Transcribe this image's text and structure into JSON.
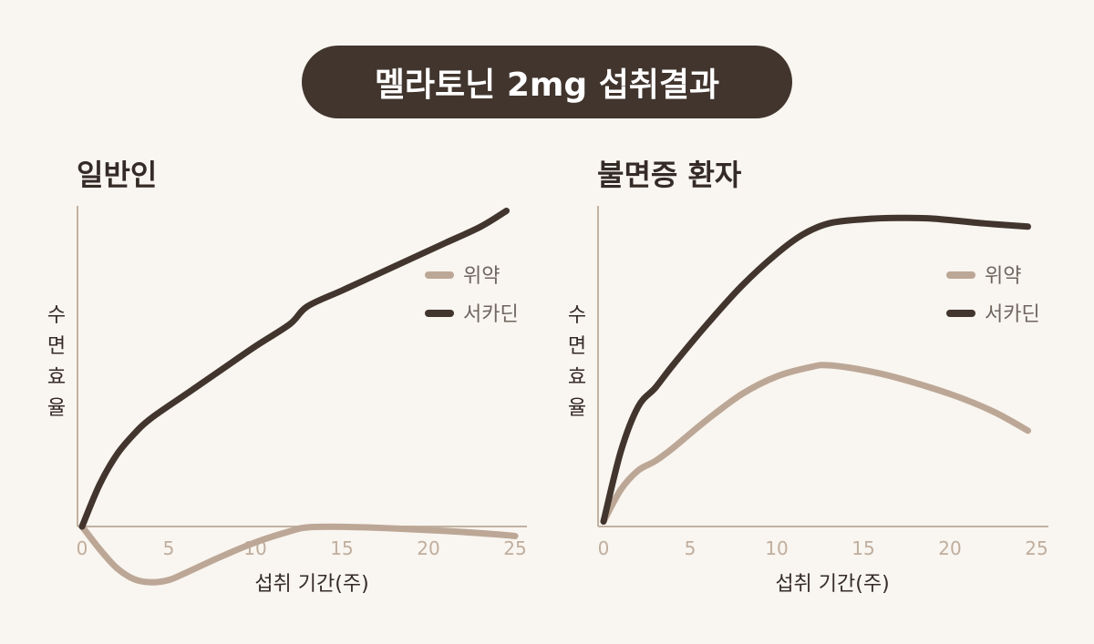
{
  "title": "멜라토닌 2mg 섭취결과",
  "colors": {
    "placebo": "#bca796",
    "circadin": "#41352e",
    "axis": "#c2b2a2"
  },
  "chart_data": [
    {
      "type": "line",
      "title": "일반인",
      "xlabel": "섭취 기간(주)",
      "ylabel": "수면효율",
      "xlim": [
        0,
        25
      ],
      "ylim": [
        -18,
        100
      ],
      "xticks": [
        0,
        5,
        10,
        15,
        20,
        25
      ],
      "legend": "top-right",
      "series": [
        {
          "name": "위약",
          "color": "placebo",
          "points": [
            [
              0,
              0
            ],
            [
              1,
              -7
            ],
            [
              2,
              -13
            ],
            [
              3,
              -16.5
            ],
            [
              4,
              -17.5
            ],
            [
              5,
              -16.8
            ],
            [
              6,
              -14.5
            ],
            [
              8,
              -9.5
            ],
            [
              10,
              -5
            ],
            [
              12,
              -1.5
            ],
            [
              13,
              -0.3
            ],
            [
              15,
              -0.1
            ],
            [
              18,
              -0.6
            ],
            [
              21,
              -1.4
            ],
            [
              24,
              -2.5
            ],
            [
              25,
              -3
            ]
          ]
        },
        {
          "name": "서카딘",
          "color": "circadin",
          "points": [
            [
              0,
              0
            ],
            [
              1,
              13
            ],
            [
              2,
              22.5
            ],
            [
              3,
              29
            ],
            [
              4,
              34
            ],
            [
              6,
              41.5
            ],
            [
              8,
              49
            ],
            [
              10,
              56.5
            ],
            [
              12,
              63.5
            ],
            [
              13,
              69
            ],
            [
              15,
              74
            ],
            [
              17,
              79
            ],
            [
              19,
              84
            ],
            [
              21,
              89
            ],
            [
              23,
              94
            ],
            [
              24.5,
              99
            ]
          ]
        }
      ]
    },
    {
      "type": "line",
      "title": "불면증 환자",
      "xlabel": "섭취 기간(주)",
      "ylabel": "수면효율",
      "xlim": [
        0,
        25
      ],
      "ylim": [
        0,
        100
      ],
      "xticks": [
        0,
        5,
        10,
        15,
        20,
        25
      ],
      "legend": "top-right",
      "series": [
        {
          "name": "위약",
          "color": "placebo",
          "points": [
            [
              0,
              1
            ],
            [
              1,
              11
            ],
            [
              2,
              17
            ],
            [
              3,
              20
            ],
            [
              4,
              24
            ],
            [
              6,
              33
            ],
            [
              8,
              41
            ],
            [
              10,
              46.5
            ],
            [
              12,
              49.5
            ],
            [
              13,
              50
            ],
            [
              15,
              48.5
            ],
            [
              17,
              46
            ],
            [
              20,
              41
            ],
            [
              22.5,
              35.5
            ],
            [
              24.5,
              29.5
            ]
          ]
        },
        {
          "name": "서카딘",
          "color": "circadin",
          "points": [
            [
              0,
              1
            ],
            [
              1,
              23
            ],
            [
              2,
              37
            ],
            [
              3,
              43
            ],
            [
              4,
              50
            ],
            [
              6,
              63
            ],
            [
              8,
              75
            ],
            [
              10,
              85
            ],
            [
              11.5,
              91
            ],
            [
              13,
              94.5
            ],
            [
              15,
              95.8
            ],
            [
              17,
              96.2
            ],
            [
              19,
              96
            ],
            [
              22,
              94.5
            ],
            [
              24.5,
              93.5
            ]
          ]
        }
      ]
    }
  ]
}
